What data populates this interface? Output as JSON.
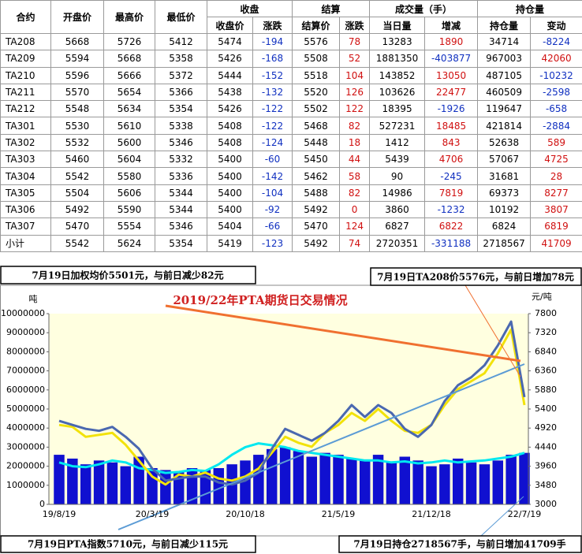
{
  "table": {
    "header": [
      [
        "合约",
        "开盘价",
        "最高价",
        "最低价",
        "收盘",
        "结算",
        "成交量（手）",
        "持仓量"
      ],
      [
        "收盘价",
        "涨跌",
        "结算价",
        "涨跌",
        "当日量",
        "增减",
        "持仓量",
        "变动"
      ]
    ],
    "rows": [
      [
        "TA208",
        5668,
        5726,
        5412,
        5474,
        -194,
        5576,
        78,
        13283,
        1890,
        34714,
        -8224
      ],
      [
        "TA209",
        5594,
        5668,
        5358,
        5426,
        -168,
        5508,
        52,
        1881350,
        -403877,
        967003,
        42060
      ],
      [
        "TA210",
        5596,
        5666,
        5372,
        5444,
        -152,
        5518,
        104,
        143852,
        13050,
        487105,
        -10232
      ],
      [
        "TA211",
        5570,
        5654,
        5366,
        5438,
        -132,
        5520,
        126,
        103626,
        22477,
        460509,
        -2598
      ],
      [
        "TA212",
        5548,
        5634,
        5354,
        5426,
        -122,
        5502,
        122,
        18395,
        -1926,
        119647,
        -658
      ],
      [
        "TA301",
        5530,
        5610,
        5338,
        5408,
        -122,
        5468,
        82,
        527231,
        18485,
        421814,
        -2884
      ],
      [
        "TA302",
        5532,
        5600,
        5346,
        5408,
        -124,
        5448,
        18,
        1412,
        843,
        52638,
        589
      ],
      [
        "TA303",
        5460,
        5604,
        5332,
        5400,
        -60,
        5450,
        44,
        5439,
        4706,
        57067,
        4725
      ],
      [
        "TA304",
        5542,
        5580,
        5336,
        5400,
        -142,
        5462,
        58,
        90,
        -245,
        31681,
        28
      ],
      [
        "TA305",
        5504,
        5606,
        5344,
        5400,
        -104,
        5488,
        82,
        14986,
        7819,
        69373,
        8277
      ],
      [
        "TA306",
        5492,
        5590,
        5344,
        5400,
        -92,
        5492,
        0,
        3860,
        -1232,
        10192,
        3807
      ],
      [
        "TA307",
        5470,
        5554,
        5346,
        5404,
        -66,
        5470,
        124,
        6827,
        6822,
        6824,
        6819
      ],
      [
        "小计",
        5542,
        5624,
        5354,
        5419,
        -123,
        5492,
        74,
        2720351,
        -331188,
        2718567,
        41709
      ]
    ]
  },
  "notes": [
    "7月19日加权均价5501元，与前日减少82元",
    "7月19日TA208价5576元，与前日增加78元",
    "7月19日PTA指数5710元，与前日减少115元",
    "7月19日持仓2718567手，与前日增加41709手"
  ],
  "chart_data": {
    "type": "combo",
    "title": "2019/22年PTA期货日交易情况",
    "y_label": "吨",
    "y2_label": "元/吨",
    "categories": [
      "19/8/19",
      null,
      null,
      null,
      null,
      null,
      null,
      "20/3/19",
      null,
      null,
      null,
      null,
      null,
      null,
      "20/10/18",
      null,
      null,
      null,
      null,
      null,
      null,
      "21/5/19",
      null,
      null,
      null,
      null,
      null,
      null,
      "21/12/18",
      null,
      null,
      null,
      null,
      null,
      null,
      "22/7/19"
    ],
    "ylim": [
      0,
      10000000
    ],
    "yticks": [
      0,
      1000000,
      2000000,
      3000000,
      4000000,
      5000000,
      6000000,
      7000000,
      8000000,
      9000000,
      10000000
    ],
    "y2lim": [
      3000,
      7800
    ],
    "y2ticks": [
      3000,
      3480,
      3960,
      4440,
      4920,
      5400,
      5880,
      6360,
      6840,
      7320,
      7800
    ],
    "grid": false,
    "series": [
      {
        "type": "bar",
        "color": "#1010d0",
        "axis": "y",
        "values": [
          2600000,
          2400000,
          2100000,
          2300000,
          2200000,
          2000000,
          2500000,
          1900000,
          1800000,
          1700000,
          1900000,
          1800000,
          1900000,
          2100000,
          2300000,
          2600000,
          2900000,
          3000000,
          2800000,
          2500000,
          2700000,
          2600000,
          2400000,
          2300000,
          2600000,
          2200000,
          2500000,
          2300000,
          2000000,
          2100000,
          2400000,
          2200000,
          2100000,
          2300000,
          2600000,
          2700000
        ]
      },
      {
        "type": "line",
        "color": "#00e8f0",
        "axis": "y",
        "values": [
          2200000,
          2000000,
          1950000,
          2100000,
          2300000,
          2200000,
          1900000,
          1800000,
          1650000,
          1700000,
          1800000,
          1750000,
          2100000,
          2600000,
          3000000,
          3200000,
          3100000,
          3000000,
          2800000,
          2700000,
          2600000,
          2500000,
          2400000,
          2300000,
          2300000,
          2200000,
          2250000,
          2150000,
          2200000,
          2300000,
          2200000,
          2250000,
          2300000,
          2400000,
          2500000,
          2700000
        ]
      },
      {
        "type": "line",
        "color": "#f2e20a",
        "axis": "y2",
        "values": [
          5000,
          4950,
          4700,
          4750,
          4800,
          4500,
          4100,
          3700,
          3500,
          3750,
          3700,
          3800,
          3650,
          3600,
          3700,
          3900,
          4300,
          4700,
          4550,
          4450,
          4800,
          5000,
          5300,
          5100,
          5400,
          5100,
          4850,
          4800,
          5000,
          5500,
          5900,
          6100,
          6300,
          6800,
          7400,
          5500
        ]
      },
      {
        "type": "line",
        "color": "#4a68b0",
        "axis": "y2",
        "values": [
          5100,
          5000,
          4900,
          4850,
          4950,
          4700,
          4400,
          3900,
          3600,
          3650,
          3700,
          3700,
          3550,
          3500,
          3600,
          3800,
          4400,
          4900,
          4750,
          4600,
          4800,
          5100,
          5500,
          5200,
          5500,
          5300,
          4900,
          4700,
          5000,
          5600,
          6000,
          6200,
          6500,
          7000,
          7600,
          5700
        ]
      }
    ]
  }
}
